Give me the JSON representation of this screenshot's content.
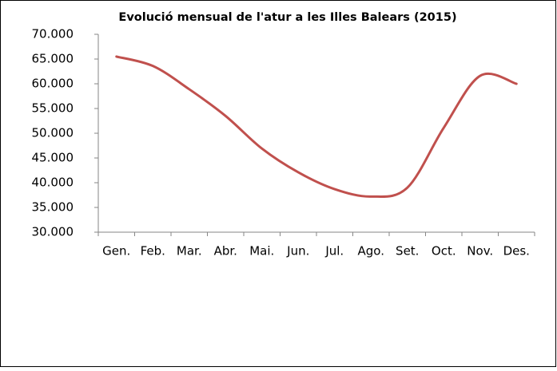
{
  "chart_data": {
    "type": "line",
    "title": "Evolució mensual de l'atur a les Illes Balears (2015)",
    "categories": [
      "Gen.",
      "Feb.",
      "Mar.",
      "Abr.",
      "Mai.",
      "Jun.",
      "Jul.",
      "Ago.",
      "Set.",
      "Oct.",
      "Nov.",
      "Des."
    ],
    "values": [
      65500,
      63600,
      58900,
      53500,
      46900,
      42100,
      38700,
      37200,
      39000,
      51100,
      61600,
      60000
    ],
    "color": "#c0504d",
    "ylim": [
      30000,
      70000
    ],
    "yticks": [
      {
        "value": 30000,
        "label": "30.000"
      },
      {
        "value": 35000,
        "label": "35.000"
      },
      {
        "value": 40000,
        "label": "40.000"
      },
      {
        "value": 45000,
        "label": "45.000"
      },
      {
        "value": 50000,
        "label": "50.000"
      },
      {
        "value": 55000,
        "label": "55.000"
      },
      {
        "value": 60000,
        "label": "60.000"
      },
      {
        "value": 65000,
        "label": "65.000"
      },
      {
        "value": 70000,
        "label": "70.000"
      }
    ],
    "smooth": true
  }
}
